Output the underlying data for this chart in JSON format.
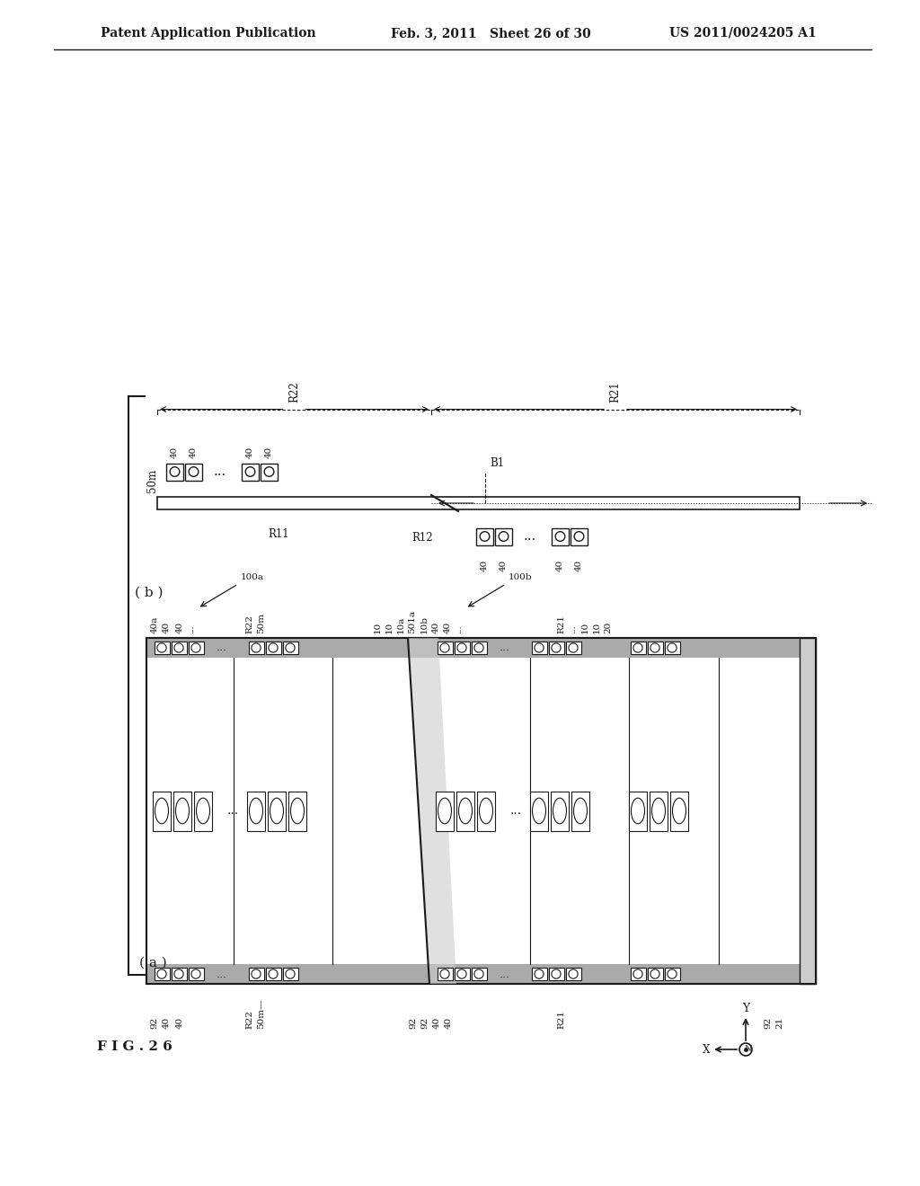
{
  "bg_color": "#ffffff",
  "header_left": "Patent Application Publication",
  "header_mid": "Feb. 3, 2011   Sheet 26 of 30",
  "header_right": "US 2011/0024205 A1",
  "fig_label": "F I G . 2 6",
  "label_a": "( a )",
  "label_b": "( b )",
  "line_color": "#1a1a1a",
  "gray_fill": "#aaaaaa",
  "light_gray": "#cccccc"
}
